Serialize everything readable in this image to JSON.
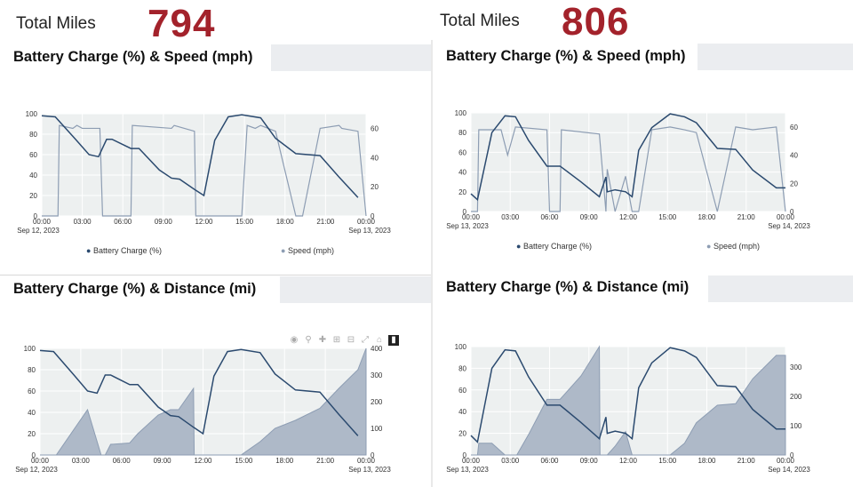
{
  "totals": [
    {
      "label": "Total Miles",
      "value": "794"
    },
    {
      "label": "Total Miles",
      "value": "806"
    }
  ],
  "titles": {
    "speed": "Battery Charge (%) & Speed (mph)",
    "distance": "Battery Charge (%) & Distance (mi)"
  },
  "legend": {
    "battery": "Battery Charge (%)",
    "speed": "Speed (mph)"
  },
  "colors": {
    "battery": "#2b4a6f",
    "secondary": "#8d9db3",
    "area_fill": "#aeb9c8",
    "plot_bg": "#edf0f0",
    "title_accent": "#a3222b"
  },
  "modebar_icons": [
    "camera-icon",
    "zoom-icon",
    "pan-icon",
    "zoom-in-icon",
    "zoom-out-icon",
    "autoscale-icon",
    "home-icon",
    "plotly-logo-icon"
  ],
  "chart_data": [
    {
      "type": "line",
      "title": "Battery Charge (%) & Speed (mph)",
      "x_ticks": [
        "00:00",
        "03:00",
        "06:00",
        "09:00",
        "12:00",
        "15:00",
        "18:00",
        "21:00",
        "00:00"
      ],
      "x_start_date": "Sep 12, 2023",
      "x_end_date": "Sep 13, 2023",
      "y_left": {
        "range": [
          0,
          100
        ],
        "ticks": [
          0,
          20,
          40,
          60,
          80,
          100
        ]
      },
      "y_right": {
        "range": [
          0,
          70
        ],
        "ticks": [
          0,
          20,
          40,
          60
        ]
      },
      "series": [
        {
          "name": "Battery Charge (%)",
          "axis": "left",
          "x": [
            0,
            1,
            2.5,
            3.5,
            4.2,
            4.8,
            5.2,
            6.6,
            7.2,
            8.7,
            9.6,
            10.2,
            11.3,
            12,
            12.8,
            13.8,
            14.8,
            16.2,
            17.3,
            18.8,
            20.6,
            22,
            23.4
          ],
          "y": [
            98,
            97,
            75,
            60,
            58,
            75,
            75,
            66,
            66,
            45,
            37,
            36,
            26,
            20,
            74,
            97,
            99,
            96,
            76,
            61,
            59,
            38,
            18
          ]
        },
        {
          "name": "Speed (mph)",
          "axis": "right",
          "x": [
            0,
            1.2,
            1.3,
            2.3,
            2.6,
            3,
            4.3,
            4.5,
            5.2,
            6.6,
            6.7,
            9.6,
            9.8,
            11.3,
            11.4,
            12,
            12.8,
            13.8,
            14.8,
            15.2,
            15.8,
            16.2,
            17.3,
            18.8,
            19.3,
            20.6,
            22,
            22.2,
            23.4,
            24
          ],
          "y": [
            0,
            0,
            62,
            60,
            62,
            60,
            60,
            0,
            0,
            0,
            62,
            60,
            62,
            58,
            0,
            0,
            0,
            0,
            0,
            62,
            60,
            62,
            58,
            0,
            0,
            60,
            62,
            60,
            58,
            0
          ]
        }
      ]
    },
    {
      "type": "line",
      "title": "Battery Charge (%) & Speed (mph)",
      "x_ticks": [
        "00:00",
        "03:00",
        "06:00",
        "09:00",
        "12:00",
        "15:00",
        "18:00",
        "21:00",
        "00:00"
      ],
      "x_start_date": "Sep 13, 2023",
      "x_end_date": "Sep 14, 2023",
      "y_left": {
        "range": [
          0,
          100
        ],
        "ticks": [
          0,
          20,
          40,
          60,
          80,
          100
        ]
      },
      "y_right": {
        "range": [
          0,
          70
        ],
        "ticks": [
          0,
          20,
          40,
          60
        ]
      },
      "series": [
        {
          "name": "Battery Charge (%)",
          "axis": "left",
          "x": [
            0,
            0.5,
            1.6,
            2.6,
            3.4,
            4.4,
            5.8,
            6.8,
            8.4,
            9.8,
            10.3,
            10.4,
            11.0,
            11.8,
            12.3,
            12.8,
            13.8,
            15.2,
            16.3,
            17.2,
            18.8,
            20.2,
            21.5,
            23.3,
            24
          ],
          "y": [
            18,
            12,
            80,
            97,
            96,
            72,
            46,
            46,
            30,
            15,
            35,
            20,
            22,
            20,
            15,
            62,
            85,
            99,
            96,
            90,
            64,
            63,
            42,
            24,
            24
          ]
        },
        {
          "name": "Speed (mph)",
          "axis": "right",
          "x": [
            0,
            0.5,
            0.6,
            1.6,
            2.3,
            2.8,
            3.4,
            5.8,
            6.0,
            6.8,
            6.9,
            9.8,
            10.3,
            10.4,
            11.0,
            11.8,
            12.3,
            12.8,
            13.8,
            15.2,
            16.3,
            17.2,
            18.8,
            20.2,
            21.5,
            23.3,
            24
          ],
          "y": [
            0,
            0,
            58,
            58,
            58,
            40,
            60,
            58,
            0,
            0,
            58,
            55,
            0,
            30,
            0,
            25,
            0,
            0,
            58,
            60,
            58,
            56,
            0,
            60,
            58,
            60,
            0
          ]
        }
      ]
    },
    {
      "type": "area",
      "title": "Battery Charge (%) & Distance (mi)",
      "x_ticks": [
        "00:00",
        "03:00",
        "06:00",
        "09:00",
        "12:00",
        "15:00",
        "18:00",
        "21:00",
        "00:00"
      ],
      "x_start_date": "Sep 12, 2023",
      "x_end_date": "Sep 13, 2023",
      "y_left": {
        "range": [
          0,
          100
        ],
        "ticks": [
          0,
          20,
          40,
          60,
          80,
          100
        ]
      },
      "y_right": {
        "range": [
          0,
          400
        ],
        "ticks": [
          0,
          100,
          200,
          300,
          400
        ]
      },
      "series": [
        {
          "name": "Battery Charge (%)",
          "axis": "left",
          "x": [
            0,
            1,
            2.5,
            3.5,
            4.2,
            4.8,
            5.2,
            6.6,
            7.2,
            8.7,
            9.6,
            10.2,
            11.3,
            12,
            12.8,
            13.8,
            14.8,
            16.2,
            17.3,
            18.8,
            20.6,
            22,
            23.4
          ],
          "y": [
            98,
            97,
            75,
            60,
            58,
            75,
            75,
            66,
            66,
            45,
            37,
            36,
            26,
            20,
            74,
            97,
            99,
            96,
            76,
            61,
            59,
            38,
            18
          ]
        },
        {
          "name": "Distance (mi)",
          "axis": "right",
          "x": [
            0,
            1.2,
            3.5,
            4.5,
            4.8,
            5.2,
            6.6,
            7.2,
            8.7,
            9.6,
            10.2,
            11.3,
            11.35,
            12,
            12.8,
            13.8,
            14.8,
            16.2,
            17.3,
            18.8,
            20.6,
            22,
            23.4,
            24
          ],
          "y": [
            0,
            0,
            170,
            0,
            0,
            40,
            45,
            80,
            150,
            170,
            170,
            250,
            0,
            0,
            0,
            0,
            0,
            50,
            100,
            130,
            175,
            250,
            320,
            400
          ]
        }
      ]
    },
    {
      "type": "area",
      "title": "Battery Charge (%) & Distance (mi)",
      "x_ticks": [
        "00:00",
        "03:00",
        "06:00",
        "09:00",
        "12:00",
        "15:00",
        "18:00",
        "21:00",
        "00:00"
      ],
      "x_start_date": "Sep 13, 2023",
      "x_end_date": "Sep 14, 2023",
      "y_left": {
        "range": [
          0,
          100
        ],
        "ticks": [
          0,
          20,
          40,
          60,
          80,
          100
        ]
      },
      "y_right": {
        "range": [
          0,
          370
        ],
        "ticks": [
          0,
          100,
          200,
          300
        ]
      },
      "series": [
        {
          "name": "Battery Charge (%)",
          "axis": "left",
          "x": [
            0,
            0.5,
            1.6,
            2.6,
            3.4,
            4.4,
            5.8,
            6.8,
            8.4,
            9.8,
            10.3,
            10.4,
            11.0,
            11.8,
            12.3,
            12.8,
            13.8,
            15.2,
            16.3,
            17.2,
            18.8,
            20.2,
            21.5,
            23.3,
            24
          ],
          "y": [
            18,
            12,
            80,
            97,
            96,
            72,
            46,
            46,
            30,
            15,
            35,
            20,
            22,
            20,
            15,
            62,
            85,
            99,
            96,
            90,
            64,
            63,
            42,
            24,
            24
          ]
        },
        {
          "name": "Distance (mi)",
          "axis": "right",
          "x": [
            0,
            0.5,
            0.6,
            1.6,
            2.6,
            3.5,
            4.4,
            5.8,
            6.8,
            8.4,
            9.8,
            9.85,
            10.3,
            10.4,
            11.0,
            11.8,
            12.3,
            12.8,
            13.8,
            15.2,
            16.3,
            17.2,
            18.8,
            20.2,
            21.5,
            23.3,
            24
          ],
          "y": [
            0,
            0,
            40,
            40,
            0,
            0,
            70,
            190,
            190,
            270,
            370,
            0,
            0,
            0,
            30,
            80,
            0,
            0,
            0,
            0,
            40,
            110,
            170,
            175,
            260,
            340,
            340
          ]
        }
      ]
    }
  ]
}
